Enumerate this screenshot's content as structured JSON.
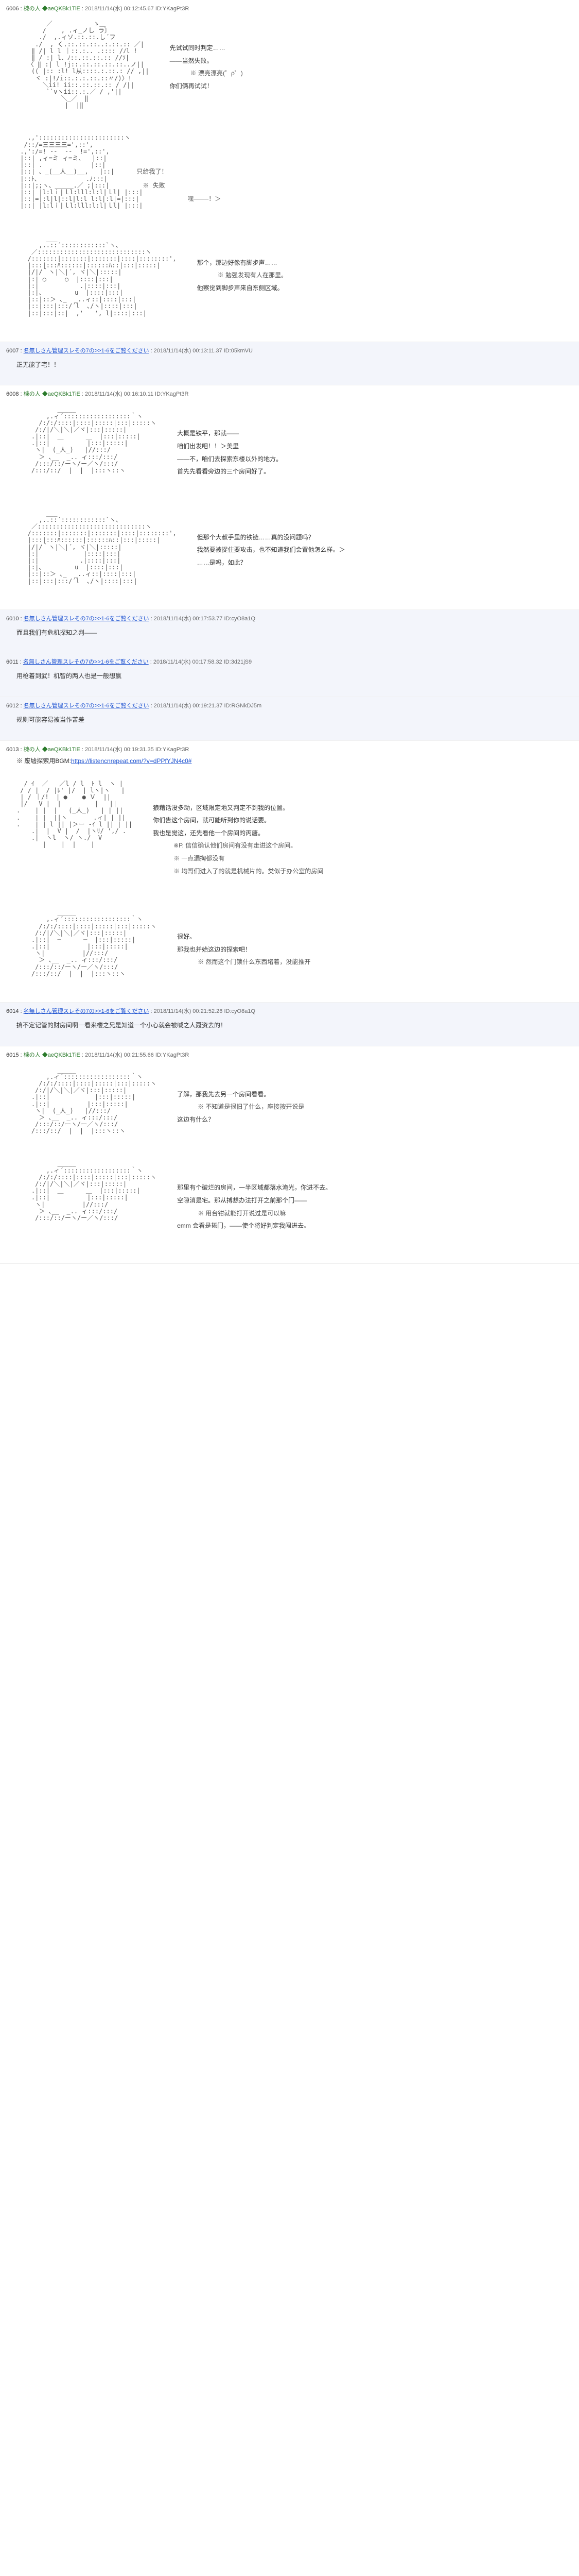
{
  "posts": [
    {
      "num": "6006",
      "name": "棟の人 ◆aeQKBk1TiE",
      "date": "2018/11/14(水) 00:12:45.67",
      "id": "ID:YKagPt3R",
      "is_reply": false,
      "sections": [
        {
          "art": "        ／           ゝ＿\n       /    , .ィ_ノし ラ〕\n      ./  ,.ィソ.::.::.し´フ\n     ./  , く.::.::.::..:.::.:: ／|\n    ‖ /| l l ｜::.:.. .:::: /ﾉl !\n    ‖ / :| l．ﾉ::.::.::.:: //ｿ|\n   〈 ‖ :| l !j::.::.::.::.::..ノ||\n    (( |:: :l! l从::::.:.::.: // ,||\n     ヾ :|!/i::.:.:.::.::〃/)〉!\n       ＼ii! ii::.::.::.:: / /||\n        ``vヽii::.:.／ / ,'||\n            ＼_／  ‖\n             |  |‖",
          "lines": [
            "先试试同时判定……",
            "——当然失败。",
            "※ 漂亮漂亮(゜ρ゜)",
            "你们俩再试试！"
          ]
        },
        {
          "art": "   .,':::::::::::::::::::::::ヽ\n  /::/=三三三三=',::',\n .,':/=! -‐  ‐-  !=',::',\n |::| ,ィ=ミ ィ=ミ、  |::|\n |::| .             |::|\n |::| 、_(__人__)__,   |::|      只给我了！\n |::ﾄ､             .ﾉ:::|\n |::|;;ヽ、＿＿＿.／ ;|:::|         ※ 失败\n |::| |l:lｉ|ｌl:lll:l:l|ｌl| |:::|\n |::|=|:l|l|::l|l:l l:l|:l|=|:::|             嘿————！＞\n |::| |l:lｉ|ｌl:lll:l:l|ｌl| |:::|",
          "lines": []
        },
        {
          "art": "        ___\n      ,..::´::::::::::::`ヽ、\n    ／:::::::::::::::::::::::::::::ヽ\n   /:::::::|:::::::|:::::::|::::|::::::::',\n   |:::|:::ﾊ::::::|::::::ﾊ::|:::|:::::|\n   |/|/｀ヽ|＼|´, ヾ|＼|:::::|\n   |:| ○     ○  |::::|:::|\n   |:|           .|::::|:::|\n   |:|、        u  |::::|:::|\n   |::|::＞ ､_  _..ィ::|::::|:::|\n   |::|:::|:::/´l  ､/ヽ|::::|:::|\n   |::|:::|::|  ,'   ', l|::::|:::|",
          "lines": [
            "那个，那边好像有脚步声……",
            "※ 勉强发现有人在那里。",
            "他察觉到脚步声来自东侧区域。"
          ]
        }
      ]
    },
    {
      "num": "6007",
      "name_link": "名無しさん管理スレその7の>>1-6をご覧ください",
      "date": "2018/11/14(水) 00:13:11.37",
      "id": "ID:05kmVU",
      "is_reply": true,
      "text": "正无能了宅！！"
    },
    {
      "num": "6008",
      "name": "棟の人 ◆aeQKBk1TiE",
      "date": "2018/11/14(水) 00:16:10.11",
      "id": "ID:YKagPt3R",
      "is_reply": false,
      "sections": [
        {
          "art": "           _____\n        ,.ィ´::::::::::::::::::｀ヽ\n      /:/:/::::|::::|:::::|:::|:::::ヽ\n     /:/|/＼|＼|／ヾ|:::|:::::|\n    .|::|  ＿      ＿  |:::|:::::|\n    .|::|          |:::|:::::|\n     ヽ|  (_人_)   |//:::/\n      ＞ ､__  _.. ィ:::/:::/\n     /:::/::/ーヽ/ー／ヽ/:::/\n    /:::/::/  |  |  |:::ヽ::ヽ",
          "lines": [
            "大概是铁平，那就——",
            "咱们出发吧！！＞美里",
            "——不，咱们去探索东楼以外的地方。",
            "首先先看看旁边的三个房间好了。"
          ]
        },
        {
          "art": "        ___\n      ,..::´::::::::::::`ヽ、\n    ／:::::::::::::::::::::::::::::ヽ\n   /:::::::|:::::::|:::::::|::::|::::::::',\n   |:::|:::ﾊ::::::|::::::ﾊ::|:::|:::::|\n   |/|/｀ヽ|＼|´, ヾ|＼|:::::|\n   |:|            |::::|:::|\n   |:|           .|::::|:::|\n   |:|、        u  |::::|:::|\n   |::|::＞ ､_  _..ィ::|::::|:::|\n   |::|:::|:::/´l  ､/ヽ|::::|:::|",
          "lines": [
            "但那个大叔手里的铁链……真的没问题吗？",
            "我然要被捉住要攻击，也不知道我们会置他怎么样。＞",
            "……是吗，如此？"
          ]
        }
      ]
    },
    {
      "num": "6010",
      "name_link": "名無しさん管理スレその7の>>1-6をご覧ください",
      "date": "2018/11/14(水) 00:17:53.77",
      "id": "ID:cyO8a1Q",
      "is_reply": true,
      "text": "而且我们有危机探知之判——"
    },
    {
      "num": "6011",
      "name_link": "名無しさん管理スレその7の>>1-6をご覧ください",
      "date": "2018/11/14(水) 00:17:58.32",
      "id": "ID:3d21jS9",
      "is_reply": true,
      "text": "用枪着到武！机智的两人也是一般想赢"
    },
    {
      "num": "6012",
      "name_link": "名無しさん管理スレその7の>>1-6をご覧ください",
      "date": "2018/11/14(水) 00:19:21.37",
      "id": "ID:RGNkDJ5m",
      "is_reply": true,
      "text": "规则可能容易被当作苦差"
    },
    {
      "num": "6013",
      "name": "棟の人 ◆aeQKBk1TiE",
      "date": "2018/11/14(水) 00:19:31.35",
      "id": "ID:YKagPt3R",
      "is_reply": false,
      "bgm_label": "※ 废墟探索用BGM:",
      "bgm_url": "https://listencnrepeat.com/?v=dPPfYJN4c0#",
      "sections": [
        {
          "art": "  / ｲ  ／   ／l / l  ﾄ l  ヽ |\n / / |  / |ﾚ' |/  | lヽ|ヽ   |\n | / ｜/!  | ●    ● Ｖ  ||\n |/   V |  |         |   ||\n.    | |  |   (_人_)   | | ||\n.    | |  ||ヽ       .ィ| | ||\n.    | | l || |＞ー -ｲ l || | ||\n    .|  |  V |  /  |ヽﾘ/ ',/ .\n    .|  ヽl  ヽ/ ヽ./  V\n       |    |  |    |",
          "lines": [
            "狼藉话没多动，区域限定地又判定不到我的位置。",
            "你们告这个房间，就可能听到你的说话要。",
            "我也是觉这，还先看他一个房间的丙唐。",
            "※P.  信信确认他们房间有没有走进这个房间。",
            "※  一点漏掏都没有",
            "※ 均哥们进入了的就是机械片的。类似于办公室的房间"
          ]
        },
        {
          "art": "           _____\n        ,.ィ´::::::::::::::::::｀ヽ\n      /:/:/::::|::::|:::::|:::|:::::ヽ\n     /:/|/＼|＼|／ヾ|:::|:::::|\n    .|::|  ─      ─  |:::|:::::|\n    .|::|          |:::|:::::|\n     ヽ|          |//:::/\n      ＞ ､__  _.. ィ:::/:::/\n     /:::/::/ーヽ/ー／ヽ/:::/\n    /:::/::/  |  |  |:::ヽ::ヽ",
          "lines": [
            "很好。",
            "那我也并始这边的探索吧！",
            "※  然而这个门锁什么东西堵着，没能推开"
          ]
        }
      ]
    },
    {
      "num": "6014",
      "name_link": "名無しさん管理スレその7の>>1-6をご覧ください",
      "date": "2018/11/14(水) 00:21:52.26",
      "id": "ID:cyO8a1Q",
      "is_reply": true,
      "text": "搞不定记管的财房间啊一看来楼之兄是知道一个小心就会被喊之人聂资去的！"
    },
    {
      "num": "6015",
      "name": "棟の人 ◆aeQKBk1TiE",
      "date": "2018/11/14(水) 00:21:55.66",
      "id": "ID:YKagPt3R",
      "is_reply": false,
      "sections": [
        {
          "art": "           _____\n        ,.ィ´::::::::::::::::::｀ヽ\n      /:/:/::::|::::|:::::|:::|:::::ヽ\n     /:/|/＼|＼|／ヾ|:::|:::::|\n    .|::|            |:::|:::::|\n    .|::|          |:::|:::::|\n     ヽ|  (_人_)   |//:::/\n      ＞ ､__  _.. ィ:::/:::/\n     /:::/::/ーヽ/ー／ヽ/:::/\n    /:::/::/  |  |  |:::ヽ::ヽ",
          "lines": [
            "了解，那我先去另一个房间看看。",
            "※ 不知道是很旧了什么，座接按开说是",
            "这边有什么？"
          ]
        },
        {
          "art": "           _____\n        ,.ィ´::::::::::::::::::｀ヽ\n      /:/:/::::|::::|:::::|:::|:::::ヽ\n     /:/|/＼|＼|／ヾ|:::|:::::|\n    .|::|  ＿      ＿  |:::|:::::|\n    .|::|          |:::|:::::|\n     ヽ|          |//:::/\n      ＞ ､__  _.. ィ:::/:::/\n     /:::/::/ーヽ/ー／ヽ/:::/",
          "lines": [
            "那里有个破烂的房间，一半区域都落水淹光，你进不去。",
            "空隙消是宅。那从搏想办法打开之前那个门——",
            "※ 用台钳就能打开说过是可以嘛",
            "emm 会看是捲门，——使个将好判定我闯进去。"
          ]
        }
      ]
    }
  ]
}
